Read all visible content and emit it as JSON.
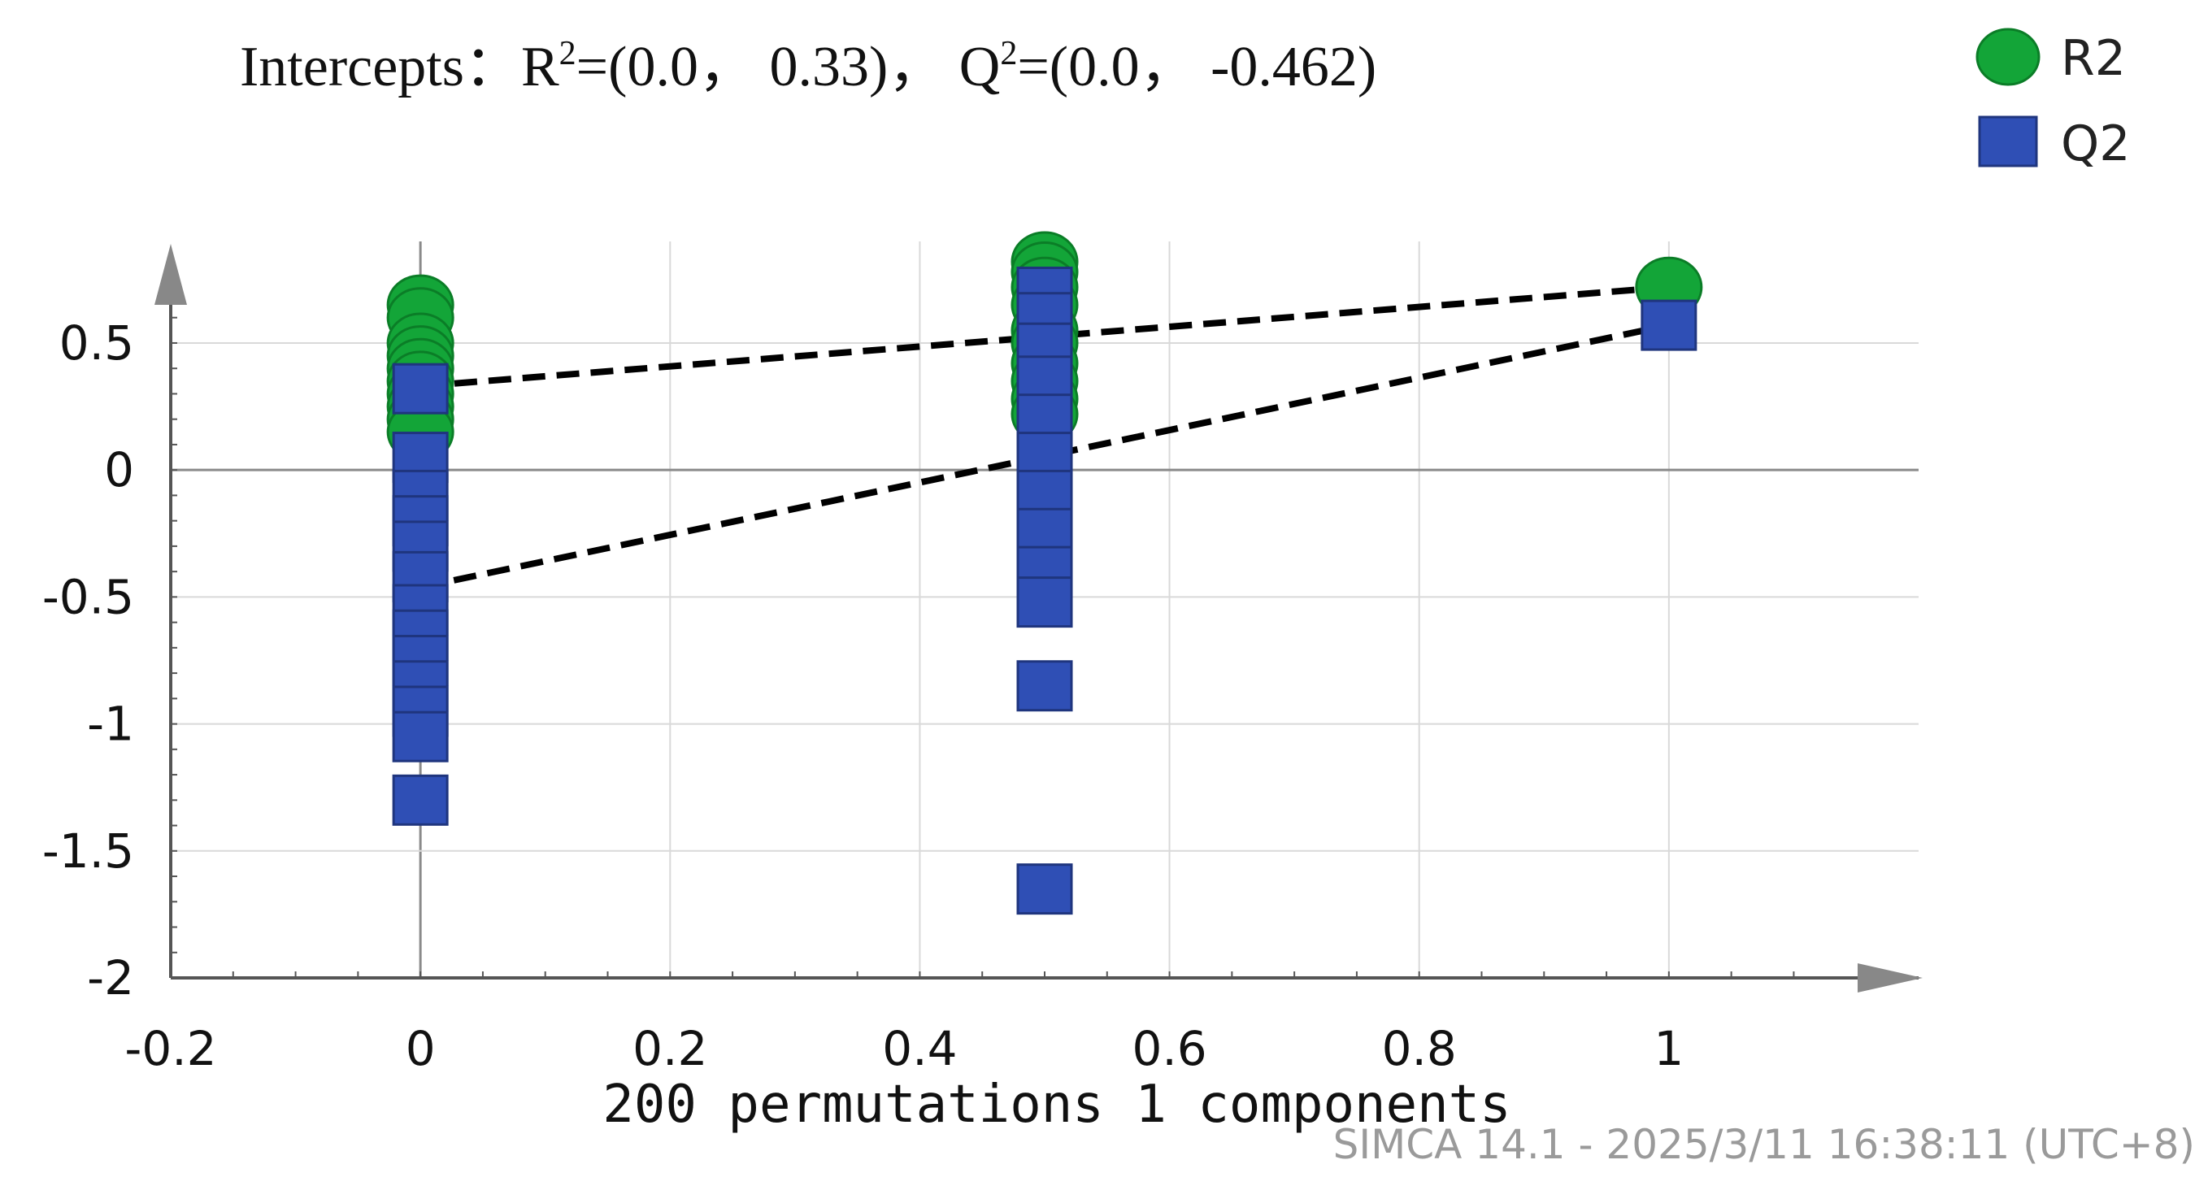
{
  "chart_data": {
    "type": "scatter",
    "title_parts": {
      "prefix": "Intercepts：R",
      "r2_value": "=(0.0， 0.33)， Q",
      "q2_value": "=(0.0， -0.462)",
      "sup": "2"
    },
    "xlabel": "200 permutations 1 components",
    "ylabel": "",
    "footer": "SIMCA 14.1 - 2025/3/11 16:38:11 (UTC+8)",
    "xlim": [
      -0.2,
      1.2
    ],
    "ylim": [
      -2,
      0.9
    ],
    "x_ticks": [
      -0.2,
      0,
      0.2,
      0.4,
      0.6,
      0.8,
      1
    ],
    "x_tick_labels": [
      "-0.2",
      "0",
      "0.2",
      "0.4",
      "0.6",
      "0.8",
      "1"
    ],
    "y_ticks": [
      0.5,
      0,
      -0.5,
      -1,
      -1.5,
      -2
    ],
    "y_tick_labels": [
      "0.5",
      "0",
      "-0.5",
      "-1",
      "-1.5",
      "-2"
    ],
    "grid": true,
    "legend_position": "top-right",
    "series": [
      {
        "name": "R2",
        "marker": "circle",
        "color": "#13a538",
        "points": [
          [
            0,
            0.65
          ],
          [
            0,
            0.6
          ],
          [
            0,
            0.5
          ],
          [
            0,
            0.45
          ],
          [
            0,
            0.4
          ],
          [
            0,
            0.35
          ],
          [
            0,
            0.3
          ],
          [
            0,
            0.25
          ],
          [
            0,
            0.2
          ],
          [
            0,
            0.15
          ],
          [
            0.5,
            0.82
          ],
          [
            0.5,
            0.78
          ],
          [
            0.5,
            0.72
          ],
          [
            0.5,
            0.65
          ],
          [
            0.5,
            0.55
          ],
          [
            0.5,
            0.5
          ],
          [
            0.5,
            0.42
          ],
          [
            0.5,
            0.35
          ],
          [
            0.5,
            0.28
          ],
          [
            0.5,
            0.22
          ],
          [
            1,
            0.72
          ]
        ]
      },
      {
        "name": "Q2",
        "marker": "square",
        "color": "#2f4fb5",
        "points": [
          [
            0,
            0.32
          ],
          [
            0,
            0.05
          ],
          [
            0,
            -0.1
          ],
          [
            0,
            -0.2
          ],
          [
            0,
            -0.3
          ],
          [
            0,
            -0.42
          ],
          [
            0,
            -0.55
          ],
          [
            0,
            -0.65
          ],
          [
            0,
            -0.75
          ],
          [
            0,
            -0.85
          ],
          [
            0,
            -0.95
          ],
          [
            0,
            -1.05
          ],
          [
            0,
            -1.3
          ],
          [
            0.5,
            0.7
          ],
          [
            0.5,
            0.6
          ],
          [
            0.5,
            0.48
          ],
          [
            0.5,
            0.35
          ],
          [
            0.5,
            0.2
          ],
          [
            0.5,
            0.05
          ],
          [
            0.5,
            -0.1
          ],
          [
            0.5,
            -0.25
          ],
          [
            0.5,
            -0.4
          ],
          [
            0.5,
            -0.52
          ],
          [
            0.5,
            -0.85
          ],
          [
            0.5,
            -1.65
          ],
          [
            1,
            0.57
          ]
        ]
      }
    ],
    "regression_lines": [
      {
        "name": "R2",
        "from": [
          0,
          0.33
        ],
        "to": [
          1,
          0.72
        ]
      },
      {
        "name": "Q2",
        "from": [
          0,
          -0.462
        ],
        "to": [
          1,
          0.57
        ]
      }
    ]
  }
}
